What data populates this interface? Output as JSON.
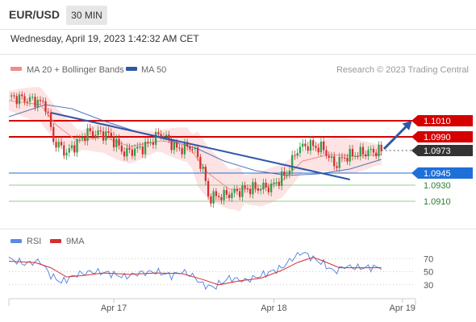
{
  "header": {
    "symbol": "EUR/USD",
    "timeframe": "30 MIN",
    "datetime": "Wednesday, April 19, 2023 1:42:32 AM CET"
  },
  "legend": {
    "ma20_label": "MA 20 + Bollinger Bands",
    "ma50_label": "MA 50",
    "credit": "Research © 2023 Trading Central",
    "rsi_label": "RSI",
    "rsi_ma_label": "9MA"
  },
  "colors": {
    "ma20": "#f08c8c",
    "ma50": "#2e57a8",
    "band_fill": "#fde3e3",
    "resistance": "#d50000",
    "pivot": "#1f6fd8",
    "support": "#8ccf8c",
    "candle_up": "#2f9e4b",
    "candle_down": "#d32f2f",
    "trendline": "#2e57a8",
    "rsi_line": "#5b8be0",
    "rsi_ma": "#d32f2f"
  },
  "chart_data": [
    {
      "type": "candlestick",
      "title": "EUR/USD 30 MIN",
      "xlabel": "",
      "ylabel": "",
      "x_ticks": [
        "Apr 17",
        "Apr 18",
        "Apr 19"
      ],
      "ylim": [
        1.088,
        1.106
      ],
      "current_price": 1.0973,
      "levels": [
        {
          "label": "1.1010",
          "value": 1.101,
          "kind": "resistance",
          "style": "box"
        },
        {
          "label": "1.0990",
          "value": 1.099,
          "kind": "resistance",
          "style": "box"
        },
        {
          "label": "1.0973",
          "value": 1.0973,
          "kind": "current",
          "style": "box"
        },
        {
          "label": "1.0945",
          "value": 1.0945,
          "kind": "pivot",
          "style": "box"
        },
        {
          "label": "1.0930",
          "value": 1.093,
          "kind": "support",
          "style": "text"
        },
        {
          "label": "1.0910",
          "value": 1.091,
          "kind": "support",
          "style": "text"
        }
      ],
      "key_points": [
        {
          "x": 0,
          "y": 1.104
        },
        {
          "x": 10,
          "y": 1.1035
        },
        {
          "x": 14,
          "y": 1.103
        },
        {
          "x": 17,
          "y": 1.0985
        },
        {
          "x": 22,
          "y": 1.097
        },
        {
          "x": 30,
          "y": 1.0995
        },
        {
          "x": 38,
          "y": 1.0993
        },
        {
          "x": 44,
          "y": 1.097
        },
        {
          "x": 52,
          "y": 1.0978
        },
        {
          "x": 58,
          "y": 1.0995
        },
        {
          "x": 64,
          "y": 1.0975
        },
        {
          "x": 70,
          "y": 1.0978
        },
        {
          "x": 74,
          "y": 1.095
        },
        {
          "x": 76,
          "y": 1.0915
        },
        {
          "x": 82,
          "y": 1.0917
        },
        {
          "x": 90,
          "y": 1.0925
        },
        {
          "x": 100,
          "y": 1.0928
        },
        {
          "x": 106,
          "y": 1.0945
        },
        {
          "x": 110,
          "y": 1.0975
        },
        {
          "x": 114,
          "y": 1.098
        },
        {
          "x": 120,
          "y": 1.0975
        },
        {
          "x": 124,
          "y": 1.0955
        },
        {
          "x": 128,
          "y": 1.0965
        },
        {
          "x": 134,
          "y": 1.097
        },
        {
          "x": 142,
          "y": 1.0973
        }
      ],
      "ma20": [
        {
          "x": 0,
          "y": 1.1035
        },
        {
          "x": 12,
          "y": 1.103
        },
        {
          "x": 18,
          "y": 1.1005
        },
        {
          "x": 26,
          "y": 1.0985
        },
        {
          "x": 36,
          "y": 1.099
        },
        {
          "x": 46,
          "y": 1.0978
        },
        {
          "x": 58,
          "y": 1.0985
        },
        {
          "x": 68,
          "y": 1.098
        },
        {
          "x": 76,
          "y": 1.0945
        },
        {
          "x": 84,
          "y": 1.0925
        },
        {
          "x": 96,
          "y": 1.0925
        },
        {
          "x": 104,
          "y": 1.0935
        },
        {
          "x": 112,
          "y": 1.096
        },
        {
          "x": 122,
          "y": 1.0968
        },
        {
          "x": 132,
          "y": 1.0966
        },
        {
          "x": 142,
          "y": 1.0968
        }
      ],
      "ma50": [
        {
          "x": 0,
          "y": 1.1015
        },
        {
          "x": 14,
          "y": 1.103
        },
        {
          "x": 24,
          "y": 1.1025
        },
        {
          "x": 36,
          "y": 1.101
        },
        {
          "x": 50,
          "y": 1.0995
        },
        {
          "x": 62,
          "y": 1.0985
        },
        {
          "x": 72,
          "y": 1.0975
        },
        {
          "x": 82,
          "y": 1.096
        },
        {
          "x": 94,
          "y": 1.0948
        },
        {
          "x": 106,
          "y": 1.0942
        },
        {
          "x": 118,
          "y": 1.0944
        },
        {
          "x": 130,
          "y": 1.095
        },
        {
          "x": 142,
          "y": 1.0962
        }
      ],
      "trendline": [
        {
          "x": 16,
          "y": 1.102
        },
        {
          "x": 130,
          "y": 1.0937
        }
      ],
      "forecast_arrow": [
        {
          "x": 143,
          "y": 1.0975
        },
        {
          "x": 153,
          "y": 1.1008
        }
      ]
    },
    {
      "type": "line",
      "title": "RSI",
      "xlabel": "",
      "ylabel": "",
      "ylim": [
        10,
        90
      ],
      "y_ticks": [
        70,
        50,
        30
      ],
      "series": [
        {
          "name": "RSI",
          "key_points": [
            {
              "x": 0,
              "y": 70
            },
            {
              "x": 6,
              "y": 62
            },
            {
              "x": 12,
              "y": 66
            },
            {
              "x": 16,
              "y": 44
            },
            {
              "x": 20,
              "y": 34
            },
            {
              "x": 26,
              "y": 46
            },
            {
              "x": 32,
              "y": 50
            },
            {
              "x": 38,
              "y": 48
            },
            {
              "x": 44,
              "y": 42
            },
            {
              "x": 50,
              "y": 48
            },
            {
              "x": 56,
              "y": 50
            },
            {
              "x": 62,
              "y": 44
            },
            {
              "x": 66,
              "y": 50
            },
            {
              "x": 70,
              "y": 44
            },
            {
              "x": 74,
              "y": 30
            },
            {
              "x": 78,
              "y": 26
            },
            {
              "x": 84,
              "y": 40
            },
            {
              "x": 90,
              "y": 36
            },
            {
              "x": 96,
              "y": 44
            },
            {
              "x": 100,
              "y": 50
            },
            {
              "x": 104,
              "y": 56
            },
            {
              "x": 108,
              "y": 70
            },
            {
              "x": 112,
              "y": 80
            },
            {
              "x": 116,
              "y": 70
            },
            {
              "x": 120,
              "y": 62
            },
            {
              "x": 124,
              "y": 50
            },
            {
              "x": 128,
              "y": 58
            },
            {
              "x": 134,
              "y": 56
            },
            {
              "x": 142,
              "y": 57
            }
          ]
        },
        {
          "name": "9MA",
          "key_points": [
            {
              "x": 0,
              "y": 66
            },
            {
              "x": 10,
              "y": 64
            },
            {
              "x": 16,
              "y": 56
            },
            {
              "x": 22,
              "y": 42
            },
            {
              "x": 28,
              "y": 44
            },
            {
              "x": 36,
              "y": 48
            },
            {
              "x": 46,
              "y": 46
            },
            {
              "x": 56,
              "y": 48
            },
            {
              "x": 66,
              "y": 47
            },
            {
              "x": 74,
              "y": 38
            },
            {
              "x": 80,
              "y": 30
            },
            {
              "x": 88,
              "y": 36
            },
            {
              "x": 96,
              "y": 40
            },
            {
              "x": 104,
              "y": 52
            },
            {
              "x": 110,
              "y": 64
            },
            {
              "x": 116,
              "y": 72
            },
            {
              "x": 120,
              "y": 66
            },
            {
              "x": 126,
              "y": 56
            },
            {
              "x": 132,
              "y": 56
            },
            {
              "x": 142,
              "y": 56
            }
          ]
        }
      ]
    }
  ]
}
